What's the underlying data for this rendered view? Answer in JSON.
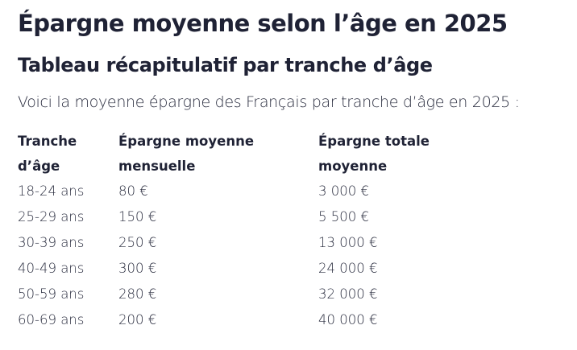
{
  "title": "Épargne moyenne selon l’âge en 2025",
  "subtitle": "Tableau récapitulatif par tranche d’âge",
  "intro": "Voici la moyenne épargne des Français par tranche d’âge en 2025 :",
  "table": {
    "headers": [
      [
        "Tranche",
        "d’âge"
      ],
      [
        "Épargne moyenne",
        "mensuelle"
      ],
      [
        "Épargne totale",
        "moyenne"
      ]
    ],
    "rows": [
      [
        "18-24 ans",
        "80 €",
        "3 000 €"
      ],
      [
        "25-29 ans",
        "150 €",
        "5 500 €"
      ],
      [
        "30-39 ans",
        "250 €",
        "13 000 €"
      ],
      [
        "40-49 ans",
        "300 €",
        "24 000 €"
      ],
      [
        "50-59 ans",
        "280 €",
        "32 000 €"
      ],
      [
        "60-69 ans",
        "200 €",
        "40 000 €"
      ]
    ]
  },
  "colors": {
    "text": "#1f2235"
  }
}
